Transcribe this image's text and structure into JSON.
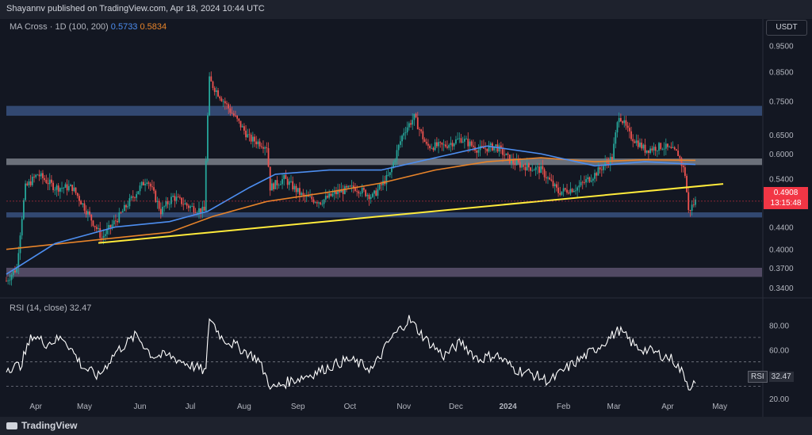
{
  "header": {
    "published": "Shayannv published on TradingView.com, Apr 18, 2024 10:44 UTC"
  },
  "indicator_legend": {
    "name": "MA Cross · 1D (100, 200)",
    "ma100_value": "0.5733",
    "ma200_value": "0.5834"
  },
  "rsi_legend": {
    "text": "RSI (14, close) 32.47"
  },
  "currency": "USDT",
  "price_tag": {
    "price": "0.4908",
    "countdown": "13:15:48"
  },
  "rsi_tag": {
    "label": "RSI",
    "value": "32.47"
  },
  "footer": {
    "brand": "TradingView"
  },
  "colors": {
    "background": "#131722",
    "up_candle": "#26a69a",
    "down_candle": "#ef5350",
    "ma100": "#4d8ef0",
    "ma200": "#e8842a",
    "trendline": "#ffeb3b",
    "zone_blue": "#3d5a8c",
    "zone_gray": "#8a8f98",
    "zone_purple": "#7b6b8f",
    "rsi_line": "#ffffff",
    "price_tag": "#f23645"
  },
  "chart_data": [
    {
      "type": "candlestick",
      "title": "",
      "y_axis_ticks": [
        "0.9500",
        "0.8500",
        "0.7500",
        "0.6500",
        "0.6000",
        "0.5400",
        "0.4400",
        "0.4000",
        "0.3700",
        "0.3400"
      ],
      "y_axis_scale": "log",
      "x_axis_ticks": [
        "Apr",
        "May",
        "Jun",
        "Jul",
        "Aug",
        "Sep",
        "Oct",
        "Nov",
        "Dec",
        "2024",
        "Feb",
        "Mar",
        "Apr",
        "May"
      ],
      "x_range": [
        "2023-03-18",
        "2024-05-25"
      ],
      "y_range": [
        0.33,
        1.0
      ],
      "last_price": 0.4908,
      "zones": [
        {
          "name": "resistance-zone",
          "low": 0.705,
          "high": 0.735,
          "color": "blue"
        },
        {
          "name": "mid-zone",
          "low": 0.572,
          "high": 0.588,
          "color": "gray"
        },
        {
          "name": "support-zone",
          "low": 0.458,
          "high": 0.468,
          "color": "blue"
        },
        {
          "name": "lower-zone",
          "low": 0.356,
          "high": 0.37,
          "color": "purple"
        }
      ],
      "trendline": {
        "start": [
          "2023-05-10",
          0.411
        ],
        "end": [
          "2024-05-04",
          0.528
        ]
      },
      "price_path": [
        [
          "2023-03-18",
          0.35
        ],
        [
          "2023-03-24",
          0.37
        ],
        [
          "2023-03-29",
          0.52
        ],
        [
          "2023-04-05",
          0.55
        ],
        [
          "2023-04-15",
          0.52
        ],
        [
          "2023-04-25",
          0.52
        ],
        [
          "2023-05-05",
          0.46
        ],
        [
          "2023-05-12",
          0.42
        ],
        [
          "2023-05-22",
          0.46
        ],
        [
          "2023-06-01",
          0.51
        ],
        [
          "2023-06-07",
          0.54
        ],
        [
          "2023-06-15",
          0.47
        ],
        [
          "2023-06-22",
          0.5
        ],
        [
          "2023-07-01",
          0.48
        ],
        [
          "2023-07-10",
          0.47
        ],
        [
          "2023-07-13",
          0.82
        ],
        [
          "2023-07-15",
          0.8
        ],
        [
          "2023-07-25",
          0.72
        ],
        [
          "2023-08-05",
          0.64
        ],
        [
          "2023-08-15",
          0.62
        ],
        [
          "2023-08-17",
          0.52
        ],
        [
          "2023-08-25",
          0.54
        ],
        [
          "2023-09-05",
          0.5
        ],
        [
          "2023-09-15",
          0.49
        ],
        [
          "2023-09-25",
          0.51
        ],
        [
          "2023-10-05",
          0.52
        ],
        [
          "2023-10-15",
          0.5
        ],
        [
          "2023-10-25",
          0.55
        ],
        [
          "2023-11-02",
          0.66
        ],
        [
          "2023-11-08",
          0.7
        ],
        [
          "2023-11-15",
          0.62
        ],
        [
          "2023-11-25",
          0.62
        ],
        [
          "2023-12-05",
          0.64
        ],
        [
          "2023-12-15",
          0.61
        ],
        [
          "2023-12-25",
          0.62
        ],
        [
          "2024-01-03",
          0.58
        ],
        [
          "2024-01-10",
          0.57
        ],
        [
          "2024-01-20",
          0.56
        ],
        [
          "2024-01-30",
          0.51
        ],
        [
          "2024-02-10",
          0.52
        ],
        [
          "2024-02-20",
          0.55
        ],
        [
          "2024-03-01",
          0.59
        ],
        [
          "2024-03-05",
          0.71
        ],
        [
          "2024-03-11",
          0.65
        ],
        [
          "2024-03-20",
          0.61
        ],
        [
          "2024-03-30",
          0.62
        ],
        [
          "2024-04-08",
          0.6
        ],
        [
          "2024-04-12",
          0.55
        ],
        [
          "2024-04-14",
          0.47
        ],
        [
          "2024-04-18",
          0.4908
        ]
      ],
      "ma100_path": [
        [
          "2023-03-18",
          0.36
        ],
        [
          "2023-04-15",
          0.41
        ],
        [
          "2023-05-20",
          0.44
        ],
        [
          "2023-06-20",
          0.45
        ],
        [
          "2023-07-12",
          0.47
        ],
        [
          "2023-08-05",
          0.52
        ],
        [
          "2023-08-20",
          0.55
        ],
        [
          "2023-09-20",
          0.56
        ],
        [
          "2023-10-20",
          0.56
        ],
        [
          "2023-11-20",
          0.59
        ],
        [
          "2023-12-20",
          0.62
        ],
        [
          "2024-01-20",
          0.6
        ],
        [
          "2024-02-20",
          0.57
        ],
        [
          "2024-03-20",
          0.58
        ],
        [
          "2024-04-18",
          0.5733
        ]
      ],
      "ma200_path": [
        [
          "2023-03-18",
          0.4
        ],
        [
          "2023-05-20",
          0.42
        ],
        [
          "2023-06-20",
          0.43
        ],
        [
          "2023-07-15",
          0.46
        ],
        [
          "2023-08-15",
          0.49
        ],
        [
          "2023-09-20",
          0.51
        ],
        [
          "2023-10-20",
          0.53
        ],
        [
          "2023-11-20",
          0.56
        ],
        [
          "2023-12-20",
          0.58
        ],
        [
          "2024-01-20",
          0.59
        ],
        [
          "2024-02-20",
          0.58
        ],
        [
          "2024-03-20",
          0.585
        ],
        [
          "2024-04-18",
          0.5834
        ]
      ]
    },
    {
      "type": "line",
      "title": "",
      "name": "RSI (14, close)",
      "y_axis_ticks": [
        "80.00",
        "60.00",
        "40.00",
        "20.00"
      ],
      "y_range": [
        18,
        92
      ],
      "bands": [
        70,
        50,
        30
      ],
      "last_value": 32.47,
      "rsi_path": [
        [
          "2023-03-18",
          45
        ],
        [
          "2023-03-26",
          47
        ],
        [
          "2023-04-02",
          72
        ],
        [
          "2023-04-10",
          65
        ],
        [
          "2023-04-20",
          70
        ],
        [
          "2023-05-01",
          46
        ],
        [
          "2023-05-10",
          38
        ],
        [
          "2023-05-20",
          58
        ],
        [
          "2023-06-01",
          72
        ],
        [
          "2023-06-10",
          55
        ],
        [
          "2023-06-20",
          55
        ],
        [
          "2023-07-01",
          48
        ],
        [
          "2023-07-11",
          42
        ],
        [
          "2023-07-13",
          87
        ],
        [
          "2023-07-20",
          70
        ],
        [
          "2023-08-01",
          60
        ],
        [
          "2023-08-10",
          52
        ],
        [
          "2023-08-18",
          28
        ],
        [
          "2023-08-28",
          34
        ],
        [
          "2023-09-10",
          40
        ],
        [
          "2023-09-20",
          46
        ],
        [
          "2023-10-01",
          52
        ],
        [
          "2023-10-15",
          44
        ],
        [
          "2023-10-25",
          68
        ],
        [
          "2023-11-05",
          85
        ],
        [
          "2023-11-15",
          68
        ],
        [
          "2023-11-25",
          55
        ],
        [
          "2023-12-05",
          66
        ],
        [
          "2023-12-15",
          52
        ],
        [
          "2023-12-25",
          56
        ],
        [
          "2024-01-05",
          44
        ],
        [
          "2024-01-15",
          40
        ],
        [
          "2024-01-25",
          34
        ],
        [
          "2024-02-05",
          46
        ],
        [
          "2024-02-20",
          60
        ],
        [
          "2024-03-05",
          76
        ],
        [
          "2024-03-15",
          62
        ],
        [
          "2024-03-25",
          58
        ],
        [
          "2024-04-05",
          52
        ],
        [
          "2024-04-12",
          38
        ],
        [
          "2024-04-14",
          30
        ],
        [
          "2024-04-18",
          32.47
        ]
      ]
    }
  ]
}
